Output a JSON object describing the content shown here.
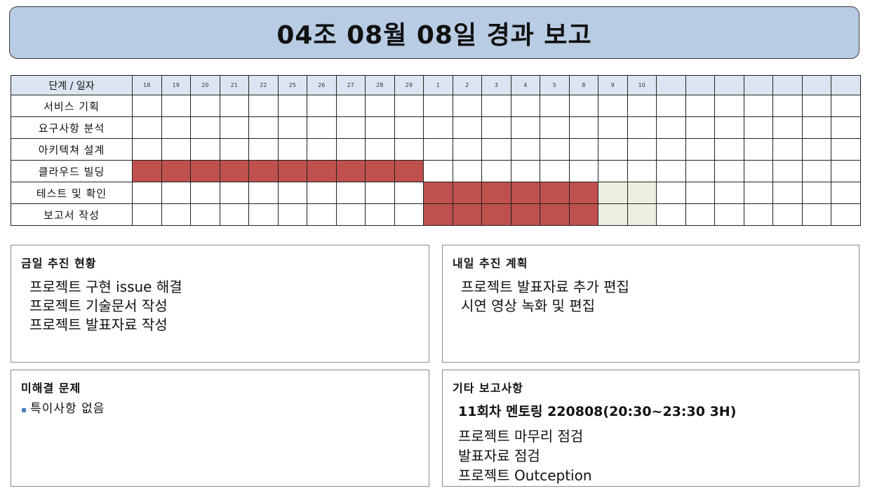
{
  "title": "04조 08월 08일 경과 보고",
  "schedule": {
    "header_label": "단계 / 일자",
    "days": [
      "18",
      "19",
      "20",
      "21",
      "22",
      "25",
      "26",
      "27",
      "28",
      "29",
      "1",
      "2",
      "3",
      "4",
      "5",
      "8",
      "9",
      "10",
      "",
      "",
      "",
      "",
      "",
      "",
      ""
    ],
    "rows": [
      {
        "task": "서비스 기획",
        "cells": "........................."
      },
      {
        "task": "요구사항 분석",
        "cells": "........................."
      },
      {
        "task": "아키텍쳐 설계",
        "cells": "........................."
      },
      {
        "task": "클라우드 빌딩",
        "cells": "AAAAAAAAAA..............."
      },
      {
        "task": "테스트 및 확인",
        "cells": "..........AAAAAAPP......."
      },
      {
        "task": "보고서 작성",
        "cells": "..........AAAAAAPP......."
      }
    ],
    "colors": {
      "active": "#c0504d",
      "pending": "#ebf1de",
      "header": "#dbe5f1"
    }
  },
  "today": {
    "heading": "금일 추진 현황",
    "items": [
      "프로젝트 구현 issue 해결",
      "프로젝트 기술문서 작성",
      "프로젝트 발표자료 작성"
    ]
  },
  "tomorrow": {
    "heading": "내일 추진 계획",
    "items": [
      "프로젝트 발표자료 추가 편집",
      "시연 영상 녹화 및 편집"
    ]
  },
  "issues": {
    "heading": "미해결 문제",
    "bullet": "▪",
    "items": [
      "특이사항 없음"
    ]
  },
  "other": {
    "heading": "기타 보고사항",
    "subheading": "11회차 멘토링 220808(20:30~23:30 3H)",
    "items": [
      "프로젝트 마무리 점검",
      "발표자료 점검",
      "프로젝트 Outception"
    ]
  },
  "title_bg": "#b8cce4"
}
